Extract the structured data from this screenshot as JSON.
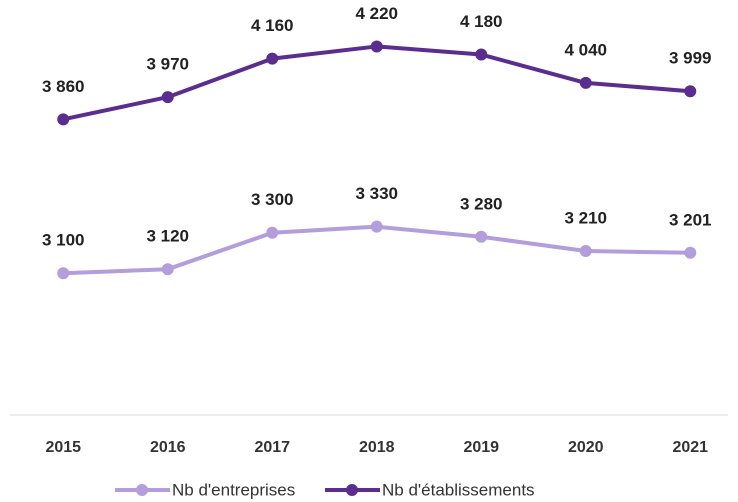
{
  "chart_data": {
    "type": "line",
    "categories": [
      "2015",
      "2016",
      "2017",
      "2018",
      "2019",
      "2020",
      "2021"
    ],
    "series": [
      {
        "name": "Nb d'entreprises",
        "color": "#b39ddb",
        "values": [
          3100,
          3120,
          3300,
          3330,
          3280,
          3210,
          3201
        ],
        "value_labels": [
          "3 100",
          "3 120",
          "3 300",
          "3 330",
          "3 280",
          "3 210",
          "3 201"
        ]
      },
      {
        "name": "Nb d'établissements",
        "color": "#5b2d8e",
        "values": [
          3860,
          3970,
          4160,
          4220,
          4180,
          4040,
          3999
        ],
        "value_labels": [
          "3 860",
          "3 970",
          "4 160",
          "4 220",
          "4 180",
          "4 040",
          "3 999"
        ]
      }
    ],
    "ylim": [
      2400,
      4400
    ],
    "legend": "bottom"
  }
}
